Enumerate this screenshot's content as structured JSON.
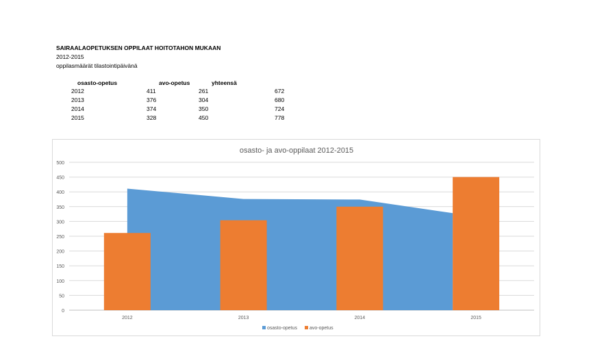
{
  "report": {
    "title": "SAIRAALAOPETUKSEN OPPILAAT HOITOTAHON MUKAAN",
    "years": "2012-2015",
    "note": "oppilasmäärät tilastointipäivänä"
  },
  "table": {
    "headers": [
      "osasto-opetus",
      "avo-opetus",
      "yhteensä"
    ],
    "rows": [
      {
        "year": "2012",
        "osasto": "411",
        "avo": "261",
        "total": "672"
      },
      {
        "year": "2013",
        "osasto": "376",
        "avo": "304",
        "total": "680"
      },
      {
        "year": "2014",
        "osasto": "374",
        "avo": "350",
        "total": "724"
      },
      {
        "year": "2015",
        "osasto": "328",
        "avo": "450",
        "total": "778"
      }
    ]
  },
  "chart_data": {
    "type": "bar",
    "title": "osasto- ja avo-oppilaat 2012-2015",
    "categories": [
      "2012",
      "2013",
      "2014",
      "2015"
    ],
    "series": [
      {
        "name": "osasto-opetus",
        "type": "area",
        "values": [
          411,
          376,
          374,
          328
        ],
        "color": "#5b9bd5"
      },
      {
        "name": "avo-opetus",
        "type": "bar",
        "values": [
          261,
          304,
          350,
          450
        ],
        "color": "#ed7d31"
      }
    ],
    "ylim": [
      0,
      500
    ],
    "yticks": [
      "0",
      "50",
      "100",
      "150",
      "200",
      "250",
      "300",
      "350",
      "400",
      "450",
      "500"
    ],
    "grid": true,
    "legend": "bottom"
  }
}
